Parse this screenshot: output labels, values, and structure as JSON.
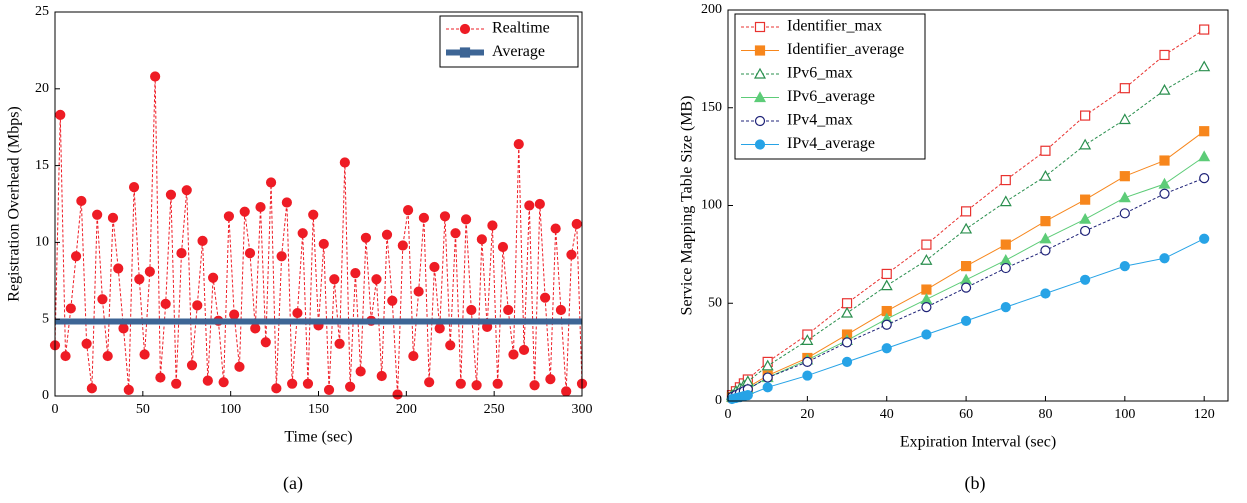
{
  "chart_data": [
    {
      "type": "line",
      "xlabel": "Time (sec)",
      "ylabel": "Registration Overhead (Mbps)",
      "caption": "(a)",
      "xlim": [
        0,
        300
      ],
      "xticks": [
        0,
        50,
        100,
        150,
        200,
        250,
        300
      ],
      "ylim": [
        0,
        25
      ],
      "yticks": [
        0,
        5,
        10,
        15,
        20,
        25
      ],
      "legend": "upper right",
      "series": [
        {
          "name": "Realtime",
          "color": "#ee1c25",
          "marker": "circle",
          "filled": true,
          "dash": true,
          "x": [
            0,
            3,
            6,
            9,
            12,
            15,
            18,
            21,
            24,
            27,
            30,
            33,
            36,
            39,
            42,
            45,
            48,
            51,
            54,
            57,
            60,
            63,
            66,
            69,
            72,
            75,
            78,
            81,
            84,
            87,
            90,
            93,
            96,
            99,
            102,
            105,
            108,
            111,
            114,
            117,
            120,
            123,
            126,
            129,
            132,
            135,
            138,
            141,
            144,
            147,
            150,
            153,
            156,
            159,
            162,
            165,
            168,
            171,
            174,
            177,
            180,
            183,
            186,
            189,
            192,
            195,
            198,
            201,
            204,
            207,
            210,
            213,
            216,
            219,
            222,
            225,
            228,
            231,
            234,
            237,
            240,
            243,
            246,
            249,
            252,
            255,
            258,
            261,
            264,
            267,
            270,
            273,
            276,
            279,
            282,
            285,
            288,
            291,
            294,
            297,
            300
          ],
          "values": [
            3.3,
            18.3,
            2.6,
            5.7,
            9.1,
            12.7,
            3.4,
            0.5,
            11.8,
            6.3,
            2.6,
            11.6,
            8.3,
            4.4,
            0.4,
            13.6,
            7.6,
            2.7,
            8.1,
            20.8,
            1.2,
            6.0,
            13.1,
            0.8,
            9.3,
            13.4,
            2.0,
            5.9,
            10.1,
            1.0,
            7.7,
            4.9,
            0.9,
            11.7,
            5.3,
            1.9,
            12.0,
            9.3,
            4.4,
            12.3,
            3.5,
            13.9,
            0.5,
            9.1,
            12.6,
            0.8,
            5.4,
            10.6,
            0.8,
            11.8,
            4.6,
            9.9,
            0.4,
            7.6,
            3.4,
            15.2,
            0.6,
            8.0,
            1.6,
            10.3,
            4.9,
            7.6,
            1.3,
            10.5,
            6.2,
            0.1,
            9.8,
            12.1,
            2.6,
            6.8,
            11.6,
            0.9,
            8.4,
            4.4,
            11.7,
            3.3,
            10.6,
            0.8,
            11.5,
            5.6,
            0.7,
            10.2,
            4.5,
            11.1,
            0.8,
            9.7,
            5.6,
            2.7,
            16.4,
            3.0,
            12.4,
            0.7,
            12.5,
            6.4,
            1.1,
            10.9,
            5.6,
            0.3,
            9.2,
            11.2,
            0.8
          ]
        },
        {
          "name": "Average",
          "color": "#3d6595",
          "marker": "square",
          "filled": true,
          "dash": false,
          "width": 6,
          "x": [
            0,
            300
          ],
          "values": [
            4.85,
            4.85
          ]
        }
      ]
    },
    {
      "type": "line",
      "xlabel": "Expiration Interval (sec)",
      "ylabel": "Service Mapping Table Size (MB)",
      "caption": "(b)",
      "xlim": [
        0,
        126
      ],
      "xticks": [
        0,
        20,
        40,
        60,
        80,
        100,
        120
      ],
      "ylim": [
        0,
        200
      ],
      "yticks": [
        0,
        50,
        100,
        150,
        200
      ],
      "legend": "upper left",
      "series": [
        {
          "name": "Identifier_max",
          "color": "#e8322f",
          "marker": "square",
          "filled": false,
          "dash": true,
          "x": [
            1,
            2,
            3,
            4,
            5,
            10,
            20,
            30,
            40,
            50,
            60,
            70,
            80,
            90,
            100,
            110,
            120
          ],
          "values": [
            3,
            5,
            7,
            9,
            11,
            20,
            34,
            50,
            65,
            80,
            97,
            113,
            128,
            146,
            160,
            177,
            190
          ]
        },
        {
          "name": "Identifier_average",
          "color": "#f7861c",
          "marker": "square",
          "filled": true,
          "dash": false,
          "x": [
            1,
            2,
            3,
            4,
            5,
            10,
            20,
            30,
            40,
            50,
            60,
            70,
            80,
            90,
            100,
            110,
            120
          ],
          "values": [
            2,
            3,
            4.5,
            5.5,
            7,
            13,
            22,
            34,
            46,
            57,
            69,
            80,
            92,
            103,
            115,
            123,
            138
          ]
        },
        {
          "name": "IPv6_max",
          "color": "#2a8f4e",
          "marker": "triangle",
          "filled": false,
          "dash": true,
          "x": [
            1,
            2,
            3,
            4,
            5,
            10,
            20,
            30,
            40,
            50,
            60,
            70,
            80,
            90,
            100,
            110,
            120
          ],
          "values": [
            3,
            5,
            6.5,
            8,
            10,
            18,
            31,
            45,
            59,
            72,
            88,
            102,
            115,
            131,
            144,
            159,
            171
          ]
        },
        {
          "name": "IPv6_average",
          "color": "#5dcc78",
          "marker": "triangle",
          "filled": true,
          "dash": false,
          "x": [
            1,
            2,
            3,
            4,
            5,
            10,
            20,
            30,
            40,
            50,
            60,
            70,
            80,
            90,
            100,
            110,
            120
          ],
          "values": [
            2,
            3,
            4,
            5,
            6,
            12,
            21,
            31,
            42,
            52,
            62,
            72,
            83,
            93,
            104,
            111,
            125
          ]
        },
        {
          "name": "IPv4_max",
          "color": "#1f2378",
          "marker": "circle",
          "filled": false,
          "dash": true,
          "x": [
            1,
            2,
            3,
            4,
            5,
            10,
            20,
            30,
            40,
            50,
            60,
            70,
            80,
            90,
            100,
            110,
            120
          ],
          "values": [
            2,
            3,
            4,
            5,
            6,
            12,
            20,
            30,
            39,
            48,
            58,
            68,
            77,
            87,
            96,
            106,
            114
          ]
        },
        {
          "name": "IPv4_average",
          "color": "#27a3e6",
          "marker": "circle",
          "filled": true,
          "dash": false,
          "x": [
            1,
            2,
            3,
            4,
            5,
            10,
            20,
            30,
            40,
            50,
            60,
            70,
            80,
            90,
            100,
            110,
            120
          ],
          "values": [
            1,
            1.5,
            2,
            2.5,
            3,
            7,
            13,
            20,
            27,
            34,
            41,
            48,
            55,
            62,
            69,
            73,
            83
          ]
        }
      ]
    }
  ]
}
